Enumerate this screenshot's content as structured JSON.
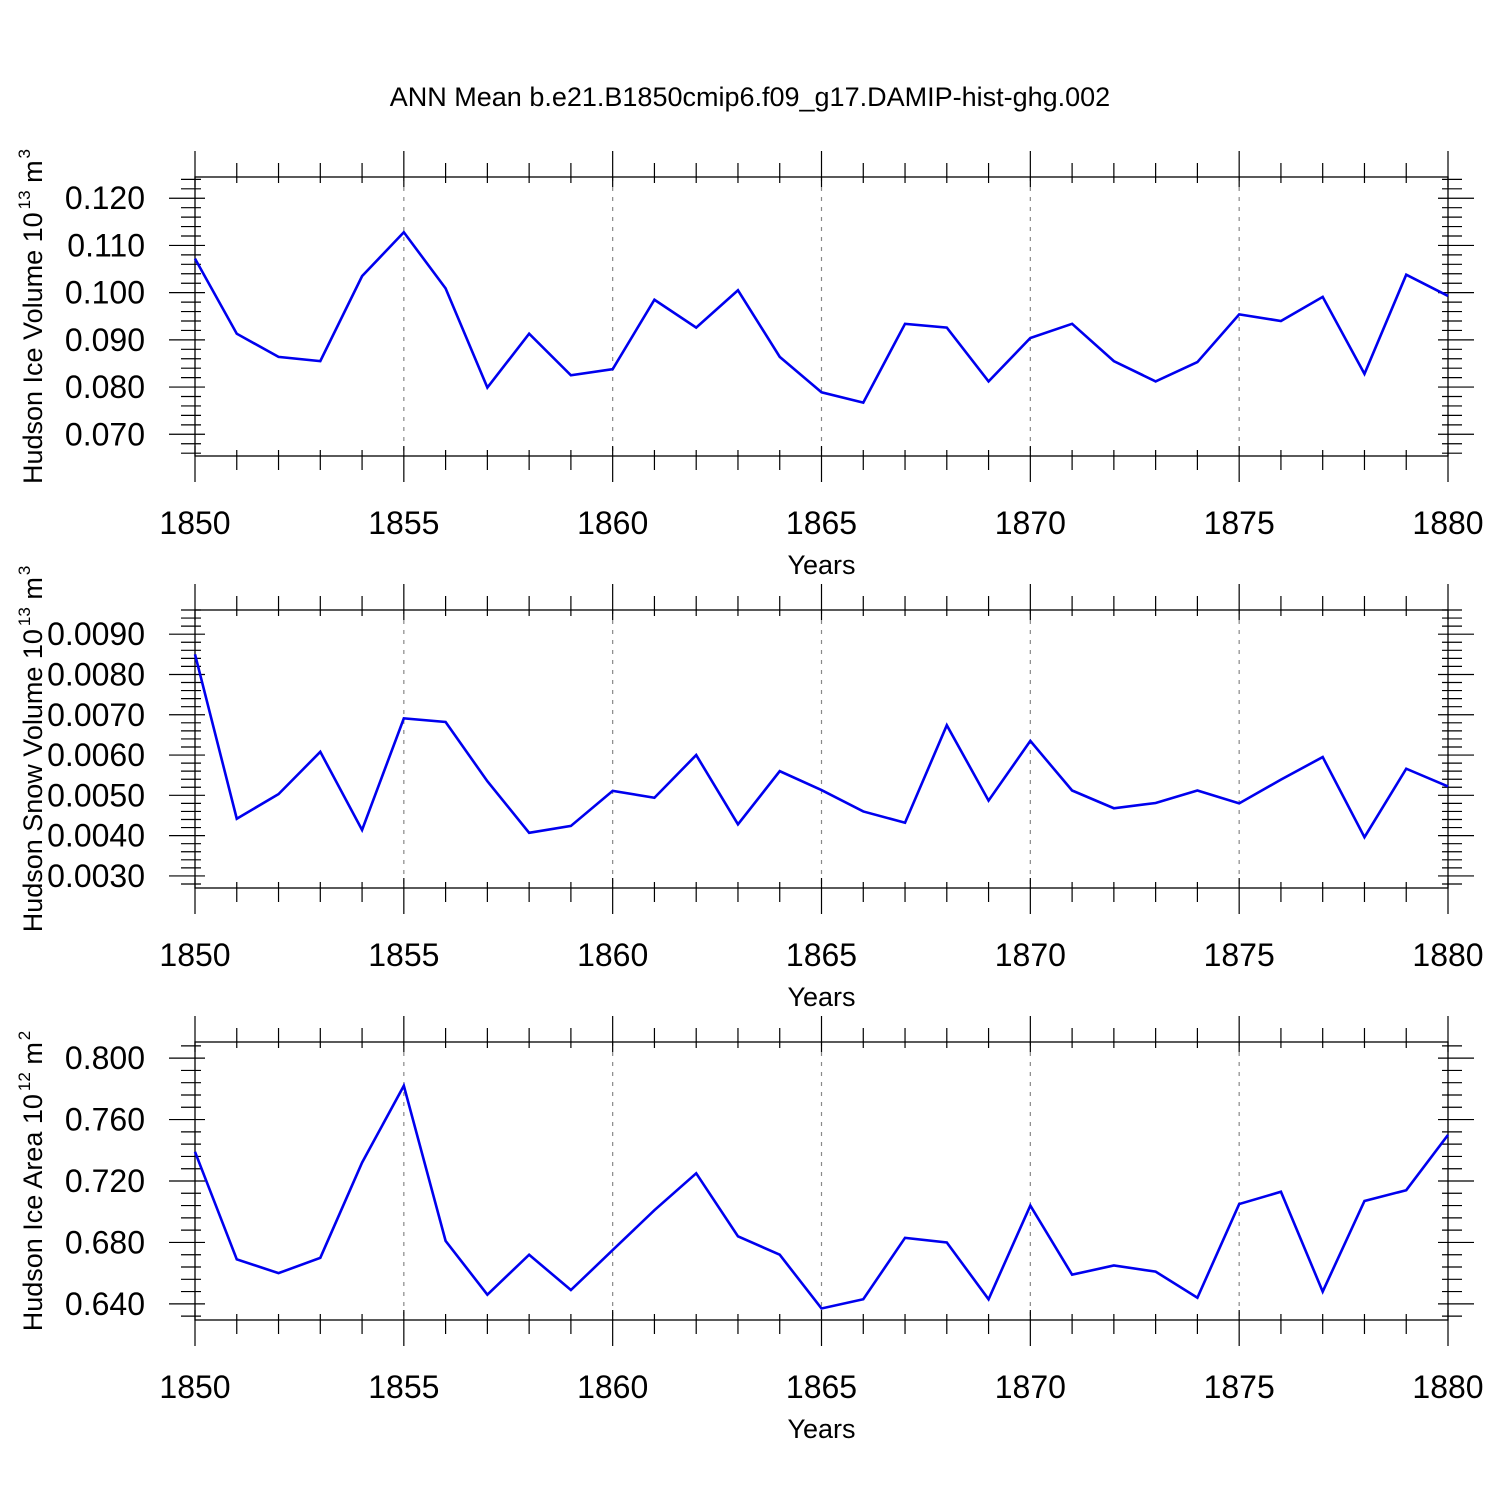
{
  "chart_data": {
    "title": "ANN Mean b.e21.B1850cmip6.f09_g17.DAMIP-hist-ghg.002",
    "panels": [
      {
        "type": "line",
        "ylabel": "Hudson Ice Volume 10",
        "yunit_exp": "13",
        "yunit_tail": " m",
        "yunit_exp2": "3",
        "xlabel": "Years",
        "xlim": [
          1850,
          1880
        ],
        "ylim": [
          0.0654,
          0.1245
        ],
        "yticks": [
          0.07,
          0.08,
          0.09,
          0.1,
          0.11,
          0.12
        ],
        "ytick_labels": [
          "0.070",
          "0.080",
          "0.090",
          "0.100",
          "0.110",
          "0.120"
        ],
        "xticks": [
          1850,
          1855,
          1860,
          1865,
          1870,
          1875,
          1880
        ],
        "xtick_labels": [
          "1850",
          "1855",
          "1860",
          "1865",
          "1870",
          "1875",
          "1880"
        ],
        "grid_x": [
          1855,
          1860,
          1865,
          1870,
          1875
        ],
        "color": "#0000ee",
        "x": [
          1850,
          1851,
          1852,
          1853,
          1854,
          1855,
          1856,
          1857,
          1858,
          1859,
          1860,
          1861,
          1862,
          1863,
          1864,
          1865,
          1866,
          1867,
          1868,
          1869,
          1870,
          1871,
          1872,
          1873,
          1874,
          1875,
          1876,
          1877,
          1878,
          1879,
          1880
        ],
        "y": [
          0.1072,
          0.0913,
          0.0864,
          0.0855,
          0.1035,
          0.1128,
          0.1009,
          0.0799,
          0.0913,
          0.0825,
          0.0838,
          0.0985,
          0.0926,
          0.1005,
          0.0864,
          0.0789,
          0.0767,
          0.0934,
          0.0926,
          0.0812,
          0.0904,
          0.0934,
          0.0855,
          0.0812,
          0.0853,
          0.0954,
          0.094,
          0.0991,
          0.0828,
          0.1038,
          0.0993
        ]
      },
      {
        "type": "line",
        "ylabel": "Hudson Snow Volume 10",
        "yunit_exp": "13",
        "yunit_tail": " m",
        "yunit_exp2": "3",
        "xlabel": "Years",
        "xlim": [
          1850,
          1880
        ],
        "ylim": [
          0.0027,
          0.0096
        ],
        "yticks": [
          0.003,
          0.004,
          0.005,
          0.006,
          0.007,
          0.008,
          0.009
        ],
        "ytick_labels": [
          "0.0030",
          "0.0040",
          "0.0050",
          "0.0060",
          "0.0070",
          "0.0080",
          "0.0090"
        ],
        "xticks": [
          1850,
          1855,
          1860,
          1865,
          1870,
          1875,
          1880
        ],
        "xtick_labels": [
          "1850",
          "1855",
          "1860",
          "1865",
          "1870",
          "1875",
          "1880"
        ],
        "grid_x": [
          1855,
          1860,
          1865,
          1870,
          1875
        ],
        "color": "#0000ee",
        "x": [
          1850,
          1851,
          1852,
          1853,
          1854,
          1855,
          1856,
          1857,
          1858,
          1859,
          1860,
          1861,
          1862,
          1863,
          1864,
          1865,
          1866,
          1867,
          1868,
          1869,
          1870,
          1871,
          1872,
          1873,
          1874,
          1875,
          1876,
          1877,
          1878,
          1879,
          1880
        ],
        "y": [
          0.0085,
          0.00442,
          0.00503,
          0.00608,
          0.00414,
          0.00691,
          0.00682,
          0.00535,
          0.00407,
          0.00424,
          0.00511,
          0.00494,
          0.006,
          0.00428,
          0.0056,
          0.00513,
          0.0046,
          0.00432,
          0.00674,
          0.00487,
          0.00635,
          0.00512,
          0.00468,
          0.00481,
          0.00512,
          0.0048,
          0.00539,
          0.00595,
          0.00396,
          0.00566,
          0.00522
        ]
      },
      {
        "type": "line",
        "ylabel": "Hudson Ice Area 10",
        "yunit_exp": "12",
        "yunit_tail": " m",
        "yunit_exp2": "2",
        "xlabel": "Years",
        "xlim": [
          1850,
          1880
        ],
        "ylim": [
          0.6295,
          0.8105
        ],
        "yticks": [
          0.64,
          0.68,
          0.72,
          0.76,
          0.8
        ],
        "ytick_labels": [
          "0.640",
          "0.680",
          "0.720",
          "0.760",
          "0.800"
        ],
        "xticks": [
          1850,
          1855,
          1860,
          1865,
          1870,
          1875,
          1880
        ],
        "xtick_labels": [
          "1850",
          "1855",
          "1860",
          "1865",
          "1870",
          "1875",
          "1880"
        ],
        "grid_x": [
          1855,
          1860,
          1865,
          1870,
          1875
        ],
        "color": "#0000ee",
        "x": [
          1850,
          1851,
          1852,
          1853,
          1854,
          1855,
          1856,
          1857,
          1858,
          1859,
          1860,
          1861,
          1862,
          1863,
          1864,
          1865,
          1866,
          1867,
          1868,
          1869,
          1870,
          1871,
          1872,
          1873,
          1874,
          1875,
          1876,
          1877,
          1878,
          1879,
          1880
        ],
        "y": [
          0.739,
          0.669,
          0.66,
          0.67,
          0.732,
          0.782,
          0.681,
          0.646,
          0.672,
          0.649,
          0.675,
          0.701,
          0.725,
          0.684,
          0.672,
          0.637,
          0.643,
          0.683,
          0.68,
          0.643,
          0.704,
          0.659,
          0.665,
          0.661,
          0.644,
          0.705,
          0.713,
          0.648,
          0.707,
          0.714,
          0.75
        ]
      }
    ]
  }
}
